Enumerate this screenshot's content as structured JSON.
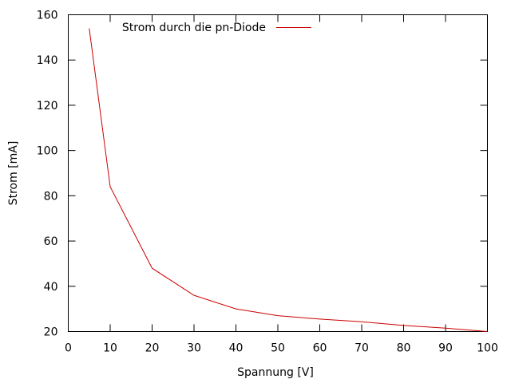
{
  "chart_data": {
    "type": "line",
    "title": "",
    "xlabel": "Spannung [V]",
    "ylabel": "Strom [mA]",
    "xlim": [
      0,
      100
    ],
    "ylim": [
      20,
      160
    ],
    "xticks": [
      0,
      10,
      20,
      30,
      40,
      50,
      60,
      70,
      80,
      90,
      100
    ],
    "yticks": [
      20,
      40,
      60,
      80,
      100,
      120,
      140,
      160
    ],
    "grid": false,
    "legend_position": "top-left",
    "series": [
      {
        "name": "Strom durch die pn-Diode",
        "color": "#cc0000",
        "x": [
          5,
          10,
          20,
          30,
          40,
          50,
          60,
          70,
          80,
          90,
          100
        ],
        "y": [
          154,
          84,
          48,
          36,
          30,
          27,
          25.5,
          24.3,
          22.7,
          21.5,
          20
        ]
      }
    ]
  }
}
